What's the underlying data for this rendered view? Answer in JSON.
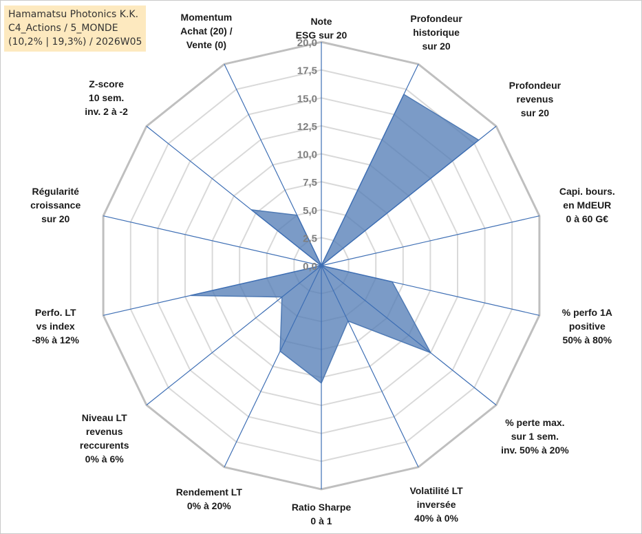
{
  "title_box": {
    "lines": [
      "Hamamatsu Photonics K.K.",
      "C4_Actions / 5_MONDE",
      "(10,2% | 19,3%) / 2026W05"
    ]
  },
  "colors": {
    "fill": "#4f7ab4",
    "spoke": "#3d6eb4",
    "grid": "#d9d9d9",
    "outer_ring": "#bfbfbf",
    "title_bg": "#fde9bf"
  },
  "chart_data": {
    "type": "radar",
    "rlim": [
      0,
      20
    ],
    "tick_labels": [
      "0,0",
      "2,5",
      "5,0",
      "7,5",
      "10,0",
      "12,5",
      "15,0",
      "17,5",
      "20,0"
    ],
    "grid": true,
    "axes": [
      {
        "lines": [
          "Note",
          "ESG sur 20"
        ],
        "value": 0
      },
      {
        "lines": [
          "Profondeur",
          "historique",
          "sur 20"
        ],
        "value": 17
      },
      {
        "lines": [
          "Profondeur",
          "revenus",
          "sur 20"
        ],
        "value": 18
      },
      {
        "lines": [
          "Capi. bours.",
          "en MdEUR",
          "0 à 60 G€"
        ],
        "value": 0
      },
      {
        "lines": [
          "% perfo 1A",
          "positive",
          "50% à 80%"
        ],
        "value": 6.5
      },
      {
        "lines": [
          "% perte max.",
          "sur 1 sem.",
          "inv. 50% à 20%"
        ],
        "value": 12.5
      },
      {
        "lines": [
          "Volatilité LT",
          "inversée",
          "40% à 0%"
        ],
        "value": 5.5
      },
      {
        "lines": [
          "Ratio Sharpe",
          "0 à 1"
        ],
        "value": 10.5
      },
      {
        "lines": [
          "Rendement LT",
          "0% à 20%"
        ],
        "value": 8.5
      },
      {
        "lines": [
          "Niveau LT",
          "revenus",
          "reccurents",
          "0% à 6%"
        ],
        "value": 4.5
      },
      {
        "lines": [
          "Perfo. LT",
          "vs index",
          "-8% à 12%"
        ],
        "value": 12
      },
      {
        "lines": [
          "Régularité",
          "croissance",
          "sur 20"
        ],
        "value": 0
      },
      {
        "lines": [
          "Z-score",
          "10 sem.",
          "inv. 2 à -2"
        ],
        "value": 8
      },
      {
        "lines": [
          "Momentum",
          "Achat (20) /",
          "Vente (0)"
        ],
        "value": 5
      }
    ]
  }
}
